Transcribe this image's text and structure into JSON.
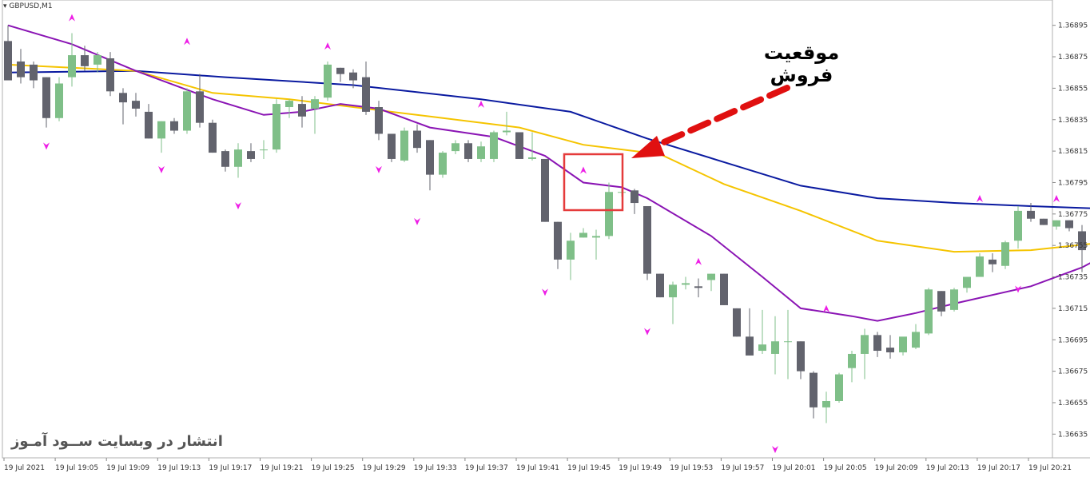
{
  "window": {
    "symbol": "GBPUSD,M1"
  },
  "annotation": {
    "text": "موقعیت فروش",
    "box_color": "#e53b3b",
    "arrow_color": "#e01010"
  },
  "watermark": {
    "text": "انتشار در وبسایت ســود آمـوز"
  },
  "colors": {
    "bull": "#7fbf88",
    "bear": "#62636d",
    "ma_slow": "#0a1aa0",
    "ma_mid": "#f5c400",
    "ma_fast": "#8a14b4",
    "fractal": "#ee1ee6",
    "grid_border": "#b0b0b0"
  },
  "chart_data": {
    "type": "candlestick",
    "title": "GBPUSD,M1",
    "ylim": [
      1.36625,
      1.36905
    ],
    "y_ticks": [
      "1.36895",
      "1.36875",
      "1.36855",
      "1.36835",
      "1.36815",
      "1.36795",
      "1.36775",
      "1.36755",
      "1.36735",
      "1.36715",
      "1.36695",
      "1.36675",
      "1.36655",
      "1.36635"
    ],
    "x_labels": [
      "19 Jul 2021",
      "19 Jul 19:05",
      "19 Jul 19:09",
      "19 Jul 19:13",
      "19 Jul 19:17",
      "19 Jul 19:21",
      "19 Jul 19:25",
      "19 Jul 19:29",
      "19 Jul 19:33",
      "19 Jul 19:37",
      "19 Jul 19:41",
      "19 Jul 19:45",
      "19 Jul 19:49",
      "19 Jul 19:53",
      "19 Jul 19:57",
      "19 Jul 20:01",
      "19 Jul 20:05",
      "19 Jul 20:09",
      "19 Jul 20:13",
      "19 Jul 20:17",
      "19 Jul 20:21"
    ],
    "candles": [
      {
        "o": 1.36885,
        "h": 1.36895,
        "l": 1.3686,
        "c": 1.3686
      },
      {
        "o": 1.36872,
        "h": 1.3688,
        "l": 1.36858,
        "c": 1.36862
      },
      {
        "o": 1.3687,
        "h": 1.36872,
        "l": 1.36855,
        "c": 1.3686
      },
      {
        "o": 1.36862,
        "h": 1.36862,
        "l": 1.3683,
        "c": 1.36836
      },
      {
        "o": 1.36836,
        "h": 1.36862,
        "l": 1.36834,
        "c": 1.36858
      },
      {
        "o": 1.36862,
        "h": 1.3689,
        "l": 1.36856,
        "c": 1.36876
      },
      {
        "o": 1.36876,
        "h": 1.36882,
        "l": 1.36866,
        "c": 1.36869
      },
      {
        "o": 1.3687,
        "h": 1.36878,
        "l": 1.36865,
        "c": 1.36876
      },
      {
        "o": 1.36874,
        "h": 1.36878,
        "l": 1.3685,
        "c": 1.36853
      },
      {
        "o": 1.36852,
        "h": 1.36855,
        "l": 1.36832,
        "c": 1.36846
      },
      {
        "o": 1.36847,
        "h": 1.36852,
        "l": 1.36837,
        "c": 1.36842
      },
      {
        "o": 1.3684,
        "h": 1.36845,
        "l": 1.36823,
        "c": 1.36823
      },
      {
        "o": 1.36823,
        "h": 1.36834,
        "l": 1.36814,
        "c": 1.36834
      },
      {
        "o": 1.36834,
        "h": 1.36836,
        "l": 1.36826,
        "c": 1.36828
      },
      {
        "o": 1.36828,
        "h": 1.36855,
        "l": 1.36826,
        "c": 1.36853
      },
      {
        "o": 1.36853,
        "h": 1.36864,
        "l": 1.3683,
        "c": 1.36833
      },
      {
        "o": 1.36833,
        "h": 1.36835,
        "l": 1.36814,
        "c": 1.36814
      },
      {
        "o": 1.36815,
        "h": 1.36816,
        "l": 1.36802,
        "c": 1.36805
      },
      {
        "o": 1.36805,
        "h": 1.3682,
        "l": 1.36798,
        "c": 1.36816
      },
      {
        "o": 1.36815,
        "h": 1.3682,
        "l": 1.36808,
        "c": 1.3681
      },
      {
        "o": 1.36816,
        "h": 1.36822,
        "l": 1.3681,
        "c": 1.36816
      },
      {
        "o": 1.36816,
        "h": 1.36848,
        "l": 1.36814,
        "c": 1.36845
      },
      {
        "o": 1.36843,
        "h": 1.36848,
        "l": 1.36836,
        "c": 1.36847
      },
      {
        "o": 1.36845,
        "h": 1.3685,
        "l": 1.3683,
        "c": 1.36837
      },
      {
        "o": 1.36842,
        "h": 1.3685,
        "l": 1.36826,
        "c": 1.36848
      },
      {
        "o": 1.36849,
        "h": 1.36872,
        "l": 1.36847,
        "c": 1.3687
      },
      {
        "o": 1.36868,
        "h": 1.36868,
        "l": 1.36859,
        "c": 1.36864
      },
      {
        "o": 1.36865,
        "h": 1.36867,
        "l": 1.36855,
        "c": 1.3686
      },
      {
        "o": 1.36862,
        "h": 1.36872,
        "l": 1.36838,
        "c": 1.3684
      },
      {
        "o": 1.36843,
        "h": 1.36847,
        "l": 1.36822,
        "c": 1.36826
      },
      {
        "o": 1.36826,
        "h": 1.36826,
        "l": 1.36808,
        "c": 1.3681
      },
      {
        "o": 1.36809,
        "h": 1.3683,
        "l": 1.36808,
        "c": 1.36828
      },
      {
        "o": 1.36828,
        "h": 1.36832,
        "l": 1.36814,
        "c": 1.36817
      },
      {
        "o": 1.36822,
        "h": 1.36822,
        "l": 1.3679,
        "c": 1.368
      },
      {
        "o": 1.368,
        "h": 1.36815,
        "l": 1.36798,
        "c": 1.36814
      },
      {
        "o": 1.36815,
        "h": 1.36822,
        "l": 1.36813,
        "c": 1.3682
      },
      {
        "o": 1.3682,
        "h": 1.36822,
        "l": 1.36808,
        "c": 1.3681
      },
      {
        "o": 1.3681,
        "h": 1.36821,
        "l": 1.36808,
        "c": 1.36818
      },
      {
        "o": 1.3681,
        "h": 1.36828,
        "l": 1.36808,
        "c": 1.36827
      },
      {
        "o": 1.36827,
        "h": 1.3684,
        "l": 1.36825,
        "c": 1.36828
      },
      {
        "o": 1.36827,
        "h": 1.36827,
        "l": 1.3681,
        "c": 1.3681
      },
      {
        "o": 1.3681,
        "h": 1.36827,
        "l": 1.36809,
        "c": 1.36811
      },
      {
        "o": 1.3681,
        "h": 1.3681,
        "l": 1.3677,
        "c": 1.3677
      },
      {
        "o": 1.3677,
        "h": 1.3677,
        "l": 1.3674,
        "c": 1.36746
      },
      {
        "o": 1.36746,
        "h": 1.36763,
        "l": 1.36733,
        "c": 1.36758
      },
      {
        "o": 1.3676,
        "h": 1.36766,
        "l": 1.3676,
        "c": 1.36763
      },
      {
        "o": 1.3676,
        "h": 1.36765,
        "l": 1.36746,
        "c": 1.36761
      },
      {
        "o": 1.36761,
        "h": 1.36795,
        "l": 1.36759,
        "c": 1.36789
      },
      {
        "o": 1.36789,
        "h": 1.36791,
        "l": 1.36786,
        "c": 1.36789
      },
      {
        "o": 1.3679,
        "h": 1.36791,
        "l": 1.36775,
        "c": 1.36782
      },
      {
        "o": 1.3678,
        "h": 1.3678,
        "l": 1.36733,
        "c": 1.36737
      },
      {
        "o": 1.36737,
        "h": 1.36737,
        "l": 1.36722,
        "c": 1.36722
      },
      {
        "o": 1.36722,
        "h": 1.36732,
        "l": 1.36705,
        "c": 1.3673
      },
      {
        "o": 1.3673,
        "h": 1.36735,
        "l": 1.36727,
        "c": 1.36731
      },
      {
        "o": 1.36729,
        "h": 1.36734,
        "l": 1.36722,
        "c": 1.36728
      },
      {
        "o": 1.36733,
        "h": 1.36737,
        "l": 1.36726,
        "c": 1.36737
      },
      {
        "o": 1.36737,
        "h": 1.36737,
        "l": 1.36717,
        "c": 1.36717
      },
      {
        "o": 1.36715,
        "h": 1.36715,
        "l": 1.36697,
        "c": 1.36697
      },
      {
        "o": 1.36697,
        "h": 1.36715,
        "l": 1.36685,
        "c": 1.36685
      },
      {
        "o": 1.36688,
        "h": 1.36714,
        "l": 1.36686,
        "c": 1.36692
      },
      {
        "o": 1.36686,
        "h": 1.3671,
        "l": 1.36673,
        "c": 1.36694
      },
      {
        "o": 1.36694,
        "h": 1.36714,
        "l": 1.3667,
        "c": 1.36694
      },
      {
        "o": 1.36694,
        "h": 1.36694,
        "l": 1.3667,
        "c": 1.36675
      },
      {
        "o": 1.36674,
        "h": 1.36675,
        "l": 1.36645,
        "c": 1.36652
      },
      {
        "o": 1.36652,
        "h": 1.36662,
        "l": 1.36642,
        "c": 1.36656
      },
      {
        "o": 1.36656,
        "h": 1.36674,
        "l": 1.36655,
        "c": 1.36673
      },
      {
        "o": 1.36677,
        "h": 1.36688,
        "l": 1.36668,
        "c": 1.36686
      },
      {
        "o": 1.36686,
        "h": 1.36702,
        "l": 1.3667,
        "c": 1.36698
      },
      {
        "o": 1.36698,
        "h": 1.367,
        "l": 1.36684,
        "c": 1.36688
      },
      {
        "o": 1.3669,
        "h": 1.36698,
        "l": 1.36683,
        "c": 1.36687
      },
      {
        "o": 1.36687,
        "h": 1.36696,
        "l": 1.36685,
        "c": 1.36697
      },
      {
        "o": 1.3669,
        "h": 1.36705,
        "l": 1.36689,
        "c": 1.367
      },
      {
        "o": 1.36699,
        "h": 1.36728,
        "l": 1.36698,
        "c": 1.36727
      },
      {
        "o": 1.36726,
        "h": 1.36726,
        "l": 1.3671,
        "c": 1.36713
      },
      {
        "o": 1.36714,
        "h": 1.36728,
        "l": 1.36713,
        "c": 1.36727
      },
      {
        "o": 1.36728,
        "h": 1.36735,
        "l": 1.36725,
        "c": 1.36735
      },
      {
        "o": 1.36735,
        "h": 1.3675,
        "l": 1.36735,
        "c": 1.36748
      },
      {
        "o": 1.36746,
        "h": 1.3675,
        "l": 1.36738,
        "c": 1.36743
      },
      {
        "o": 1.36742,
        "h": 1.36758,
        "l": 1.3674,
        "c": 1.36757
      },
      {
        "o": 1.36758,
        "h": 1.3678,
        "l": 1.36753,
        "c": 1.36777
      },
      {
        "o": 1.36777,
        "h": 1.36782,
        "l": 1.3677,
        "c": 1.36772
      },
      {
        "o": 1.36772,
        "h": 1.36772,
        "l": 1.36768,
        "c": 1.36768
      },
      {
        "o": 1.36767,
        "h": 1.36771,
        "l": 1.36765,
        "c": 1.36771
      },
      {
        "o": 1.36771,
        "h": 1.36771,
        "l": 1.36764,
        "c": 1.36766
      },
      {
        "o": 1.36764,
        "h": 1.36768,
        "l": 1.36738,
        "c": 1.36752
      },
      {
        "o": 1.36753,
        "h": 1.36781,
        "l": 1.36752,
        "c": 1.36763
      },
      {
        "o": 1.36765,
        "h": 1.36783,
        "l": 1.36765,
        "c": 1.3678
      },
      {
        "o": 1.36781,
        "h": 1.36791,
        "l": 1.36775,
        "c": 1.36789
      }
    ],
    "series": [
      {
        "name": "MA-slow",
        "color": "#0a1aa0",
        "values": [
          [
            0,
            1.36865
          ],
          [
            10,
            1.36866
          ],
          [
            17,
            1.36862
          ],
          [
            27,
            1.36857
          ],
          [
            37,
            1.36848
          ],
          [
            44,
            1.3684
          ],
          [
            50,
            1.36823
          ],
          [
            56,
            1.36808
          ],
          [
            62,
            1.36793
          ],
          [
            68,
            1.36785
          ],
          [
            74,
            1.36782
          ],
          [
            80,
            1.3678
          ],
          [
            87,
            1.36778
          ]
        ]
      },
      {
        "name": "MA-mid",
        "color": "#f5c400",
        "values": [
          [
            0,
            1.3687
          ],
          [
            10,
            1.36866
          ],
          [
            16,
            1.36852
          ],
          [
            22,
            1.36848
          ],
          [
            33,
            1.36837
          ],
          [
            40,
            1.3683
          ],
          [
            45,
            1.36819
          ],
          [
            51,
            1.36813
          ],
          [
            56,
            1.36794
          ],
          [
            62,
            1.36777
          ],
          [
            68,
            1.36758
          ],
          [
            74,
            1.36751
          ],
          [
            80,
            1.36752
          ],
          [
            87,
            1.36758
          ]
        ]
      },
      {
        "name": "MA-fast",
        "color": "#8a14b4",
        "values": [
          [
            0,
            1.36895
          ],
          [
            5,
            1.36883
          ],
          [
            10,
            1.36866
          ],
          [
            16,
            1.36848
          ],
          [
            20,
            1.36838
          ],
          [
            23,
            1.3684
          ],
          [
            26,
            1.36845
          ],
          [
            29,
            1.36842
          ],
          [
            33,
            1.3683
          ],
          [
            38,
            1.36824
          ],
          [
            42,
            1.36812
          ],
          [
            45,
            1.36795
          ],
          [
            48,
            1.36792
          ],
          [
            50,
            1.36785
          ],
          [
            55,
            1.36761
          ],
          [
            59,
            1.36735
          ],
          [
            62,
            1.36715
          ],
          [
            66,
            1.3671
          ],
          [
            68,
            1.36707
          ],
          [
            71,
            1.36712
          ],
          [
            74,
            1.36718
          ],
          [
            80,
            1.36729
          ],
          [
            84,
            1.36741
          ],
          [
            87,
            1.36754
          ]
        ]
      }
    ],
    "fractals_up": [
      [
        5,
        1.36895
      ],
      [
        14,
        1.3688
      ],
      [
        25,
        1.36877
      ],
      [
        37,
        1.3684
      ],
      [
        45,
        1.36798
      ],
      [
        54,
        1.3674
      ],
      [
        64,
        1.3671
      ],
      [
        76,
        1.3678
      ],
      [
        82,
        1.3678
      ]
    ],
    "fractals_down": [
      [
        3,
        1.36823
      ],
      [
        12,
        1.36808
      ],
      [
        18,
        1.36785
      ],
      [
        29,
        1.36808
      ],
      [
        32,
        1.36775
      ],
      [
        42,
        1.3673
      ],
      [
        50,
        1.36705
      ],
      [
        60,
        1.3663
      ],
      [
        79,
        1.36732
      ]
    ]
  }
}
